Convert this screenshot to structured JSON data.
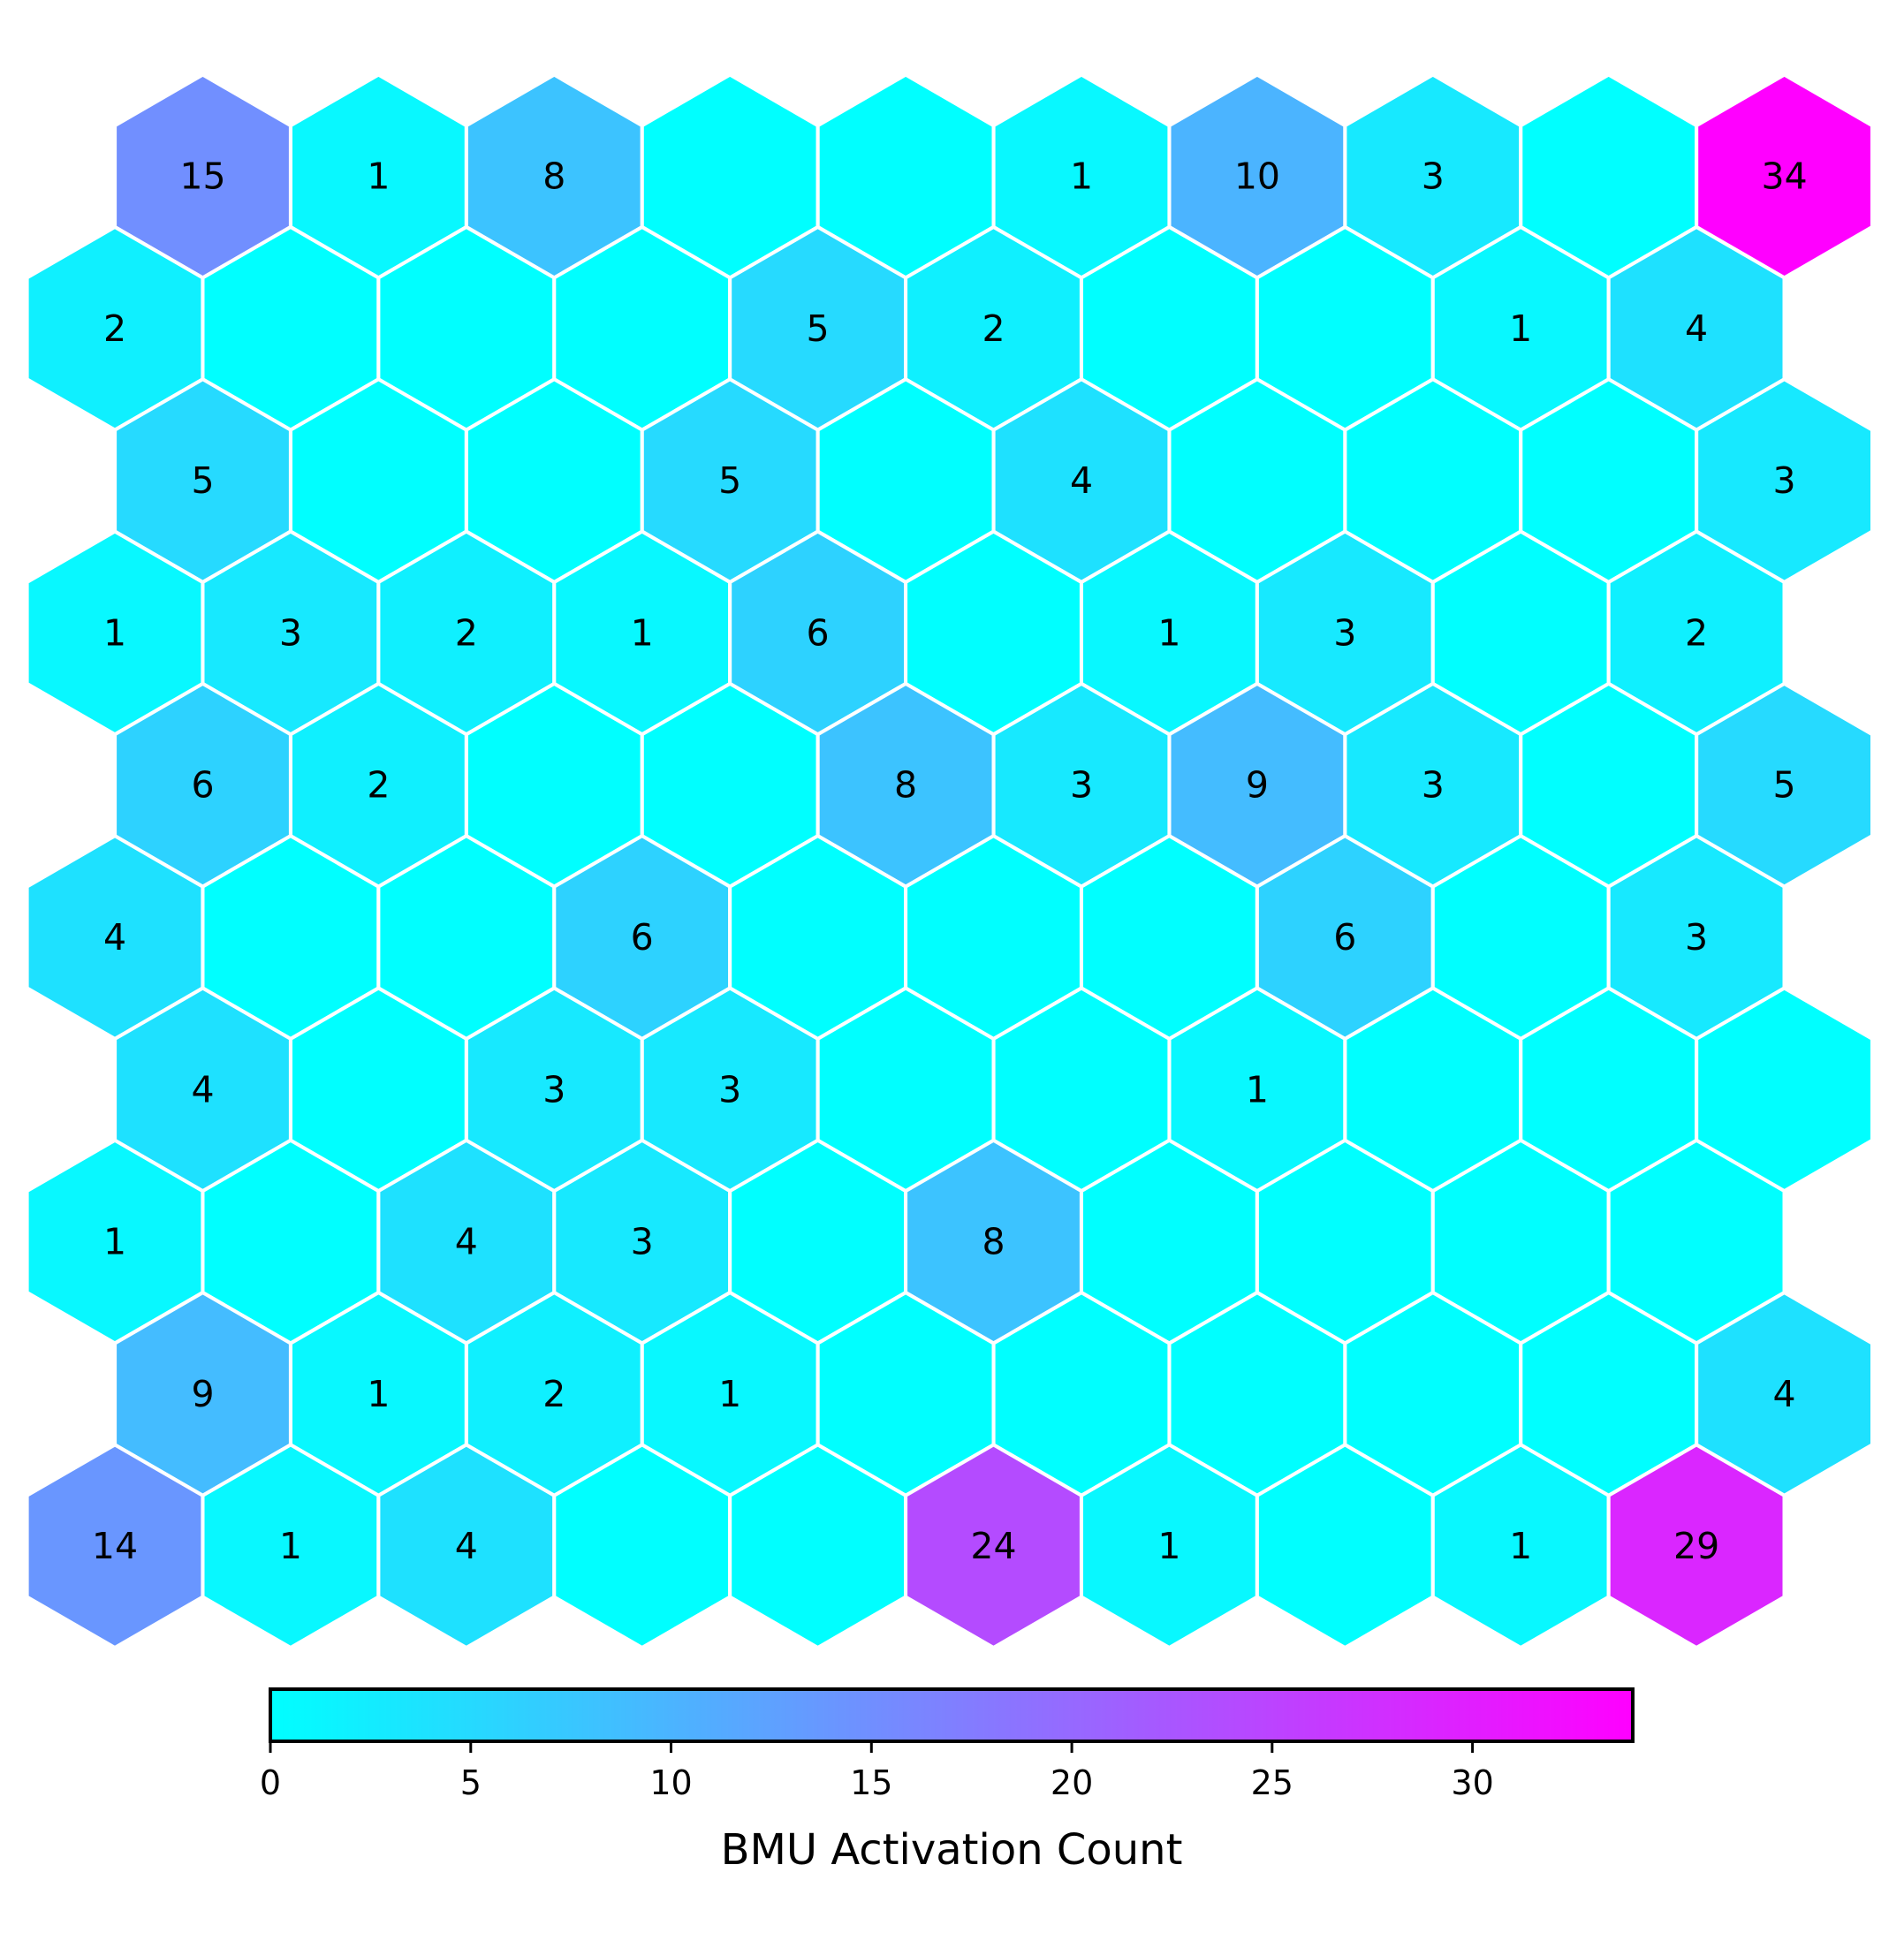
{
  "chart_data": {
    "type": "heatmap",
    "grid": "hexagonal",
    "rows": 10,
    "cols": 10,
    "values": [
      [
        15,
        1,
        8,
        0,
        0,
        1,
        10,
        3,
        0,
        34
      ],
      [
        2,
        0,
        0,
        0,
        5,
        2,
        0,
        0,
        1,
        4
      ],
      [
        5,
        0,
        0,
        5,
        0,
        4,
        0,
        0,
        0,
        3
      ],
      [
        1,
        3,
        2,
        1,
        6,
        0,
        1,
        3,
        0,
        2
      ],
      [
        6,
        2,
        0,
        0,
        8,
        3,
        9,
        3,
        0,
        5
      ],
      [
        4,
        0,
        0,
        6,
        0,
        0,
        0,
        6,
        0,
        3
      ],
      [
        4,
        0,
        3,
        3,
        0,
        0,
        1,
        0,
        0,
        0
      ],
      [
        1,
        0,
        4,
        3,
        0,
        8,
        0,
        0,
        0,
        0
      ],
      [
        9,
        1,
        2,
        1,
        0,
        0,
        0,
        0,
        0,
        4
      ],
      [
        14,
        1,
        4,
        0,
        0,
        24,
        1,
        0,
        1,
        29
      ]
    ],
    "zero_labels_shown": false,
    "colormap": {
      "name": "cool",
      "low": "#00ffff",
      "high": "#ff00ff"
    },
    "colorbar": {
      "label": "BMU Activation Count",
      "range": [
        0,
        34
      ],
      "ticks": [
        0,
        5,
        10,
        15,
        20,
        25,
        30
      ],
      "orientation": "horizontal",
      "placement": "bottom"
    },
    "cell_border_color": "#ffffff"
  }
}
